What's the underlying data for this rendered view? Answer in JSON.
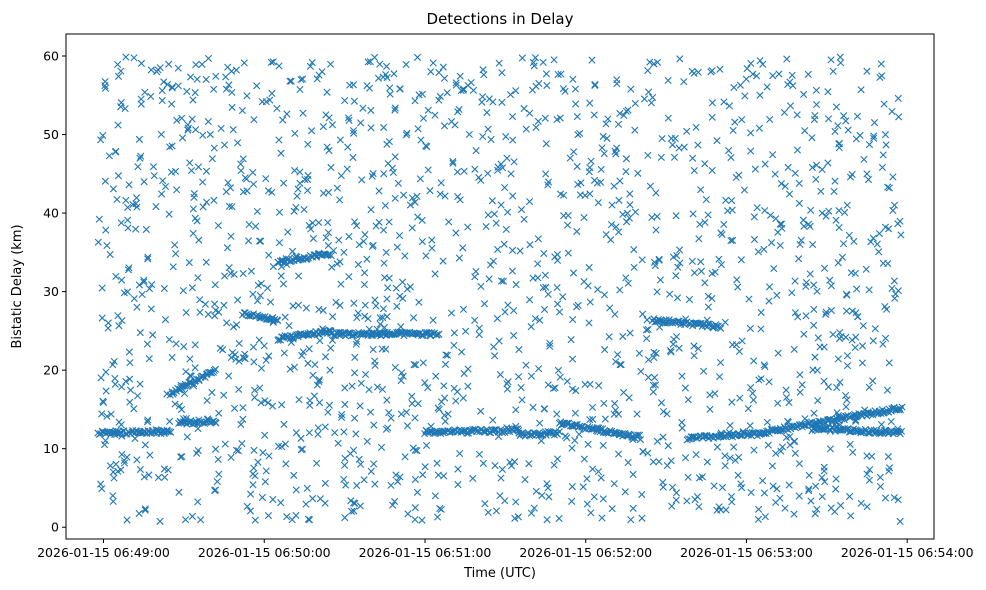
{
  "chart_data": {
    "type": "scatter",
    "title": "Detections in Delay",
    "xlabel": "Time (UTC)",
    "ylabel": "Bistatic Delay (km)",
    "x_ticks": [
      "2026-01-15 06:49:00",
      "2026-01-15 06:50:00",
      "2026-01-15 06:51:00",
      "2026-01-15 06:52:00",
      "2026-01-15 06:53:00",
      "2026-01-15 06:54:00"
    ],
    "y_ticks": [
      0,
      10,
      20,
      30,
      40,
      50,
      60
    ],
    "xlim": [
      "2026-01-15 06:48:46",
      "2026-01-15 06:54:10"
    ],
    "ylim": [
      -1.5,
      62.8
    ],
    "marker": "x",
    "color": "#1f77b4",
    "grid": false,
    "data_range": {
      "x": [
        "2026-01-15 06:48:58",
        "2026-01-15 06:53:58"
      ],
      "y": [
        0.7,
        59.9
      ]
    },
    "tracks": [
      {
        "x": [
          "2026-01-15 06:48:58",
          "2026-01-15 06:49:25"
        ],
        "y": [
          12.0,
          12.2
        ]
      },
      {
        "x": [
          "2026-01-15 06:49:28",
          "2026-01-15 06:49:42"
        ],
        "y": [
          13.3,
          13.5
        ]
      },
      {
        "x": [
          "2026-01-15 06:49:52",
          "2026-01-15 06:50:05"
        ],
        "y": [
          27.2,
          26.4
        ]
      },
      {
        "x": [
          "2026-01-15 06:50:05",
          "2026-01-15 06:50:25"
        ],
        "y": [
          33.8,
          34.8
        ]
      },
      {
        "x": [
          "2026-01-15 06:50:05",
          "2026-01-15 06:50:25"
        ],
        "y": [
          24.0,
          25.0
        ]
      },
      {
        "x": [
          "2026-01-15 06:50:25",
          "2026-01-15 06:51:05"
        ],
        "y": [
          24.6,
          24.6
        ]
      },
      {
        "x": [
          "2026-01-15 06:51:00",
          "2026-01-15 06:51:35"
        ],
        "y": [
          12.1,
          12.3
        ]
      },
      {
        "x": [
          "2026-01-15 06:51:35",
          "2026-01-15 06:51:50"
        ],
        "y": [
          11.8,
          12.0
        ]
      },
      {
        "x": [
          "2026-01-15 06:51:50",
          "2026-01-15 06:52:20"
        ],
        "y": [
          13.3,
          11.5
        ]
      },
      {
        "x": [
          "2026-01-15 06:52:25",
          "2026-01-15 06:52:50"
        ],
        "y": [
          26.4,
          25.5
        ]
      },
      {
        "x": [
          "2026-01-15 06:52:38",
          "2026-01-15 06:53:05"
        ],
        "y": [
          11.3,
          11.9
        ]
      },
      {
        "x": [
          "2026-01-15 06:53:05",
          "2026-01-15 06:53:58"
        ],
        "y": [
          12.0,
          15.2
        ]
      },
      {
        "x": [
          "2026-01-15 06:53:25",
          "2026-01-15 06:53:58"
        ],
        "y": [
          12.6,
          12.0
        ]
      },
      {
        "x": [
          "2026-01-15 06:49:25",
          "2026-01-15 06:49:42"
        ],
        "y": [
          17.0,
          20.0
        ]
      }
    ]
  }
}
